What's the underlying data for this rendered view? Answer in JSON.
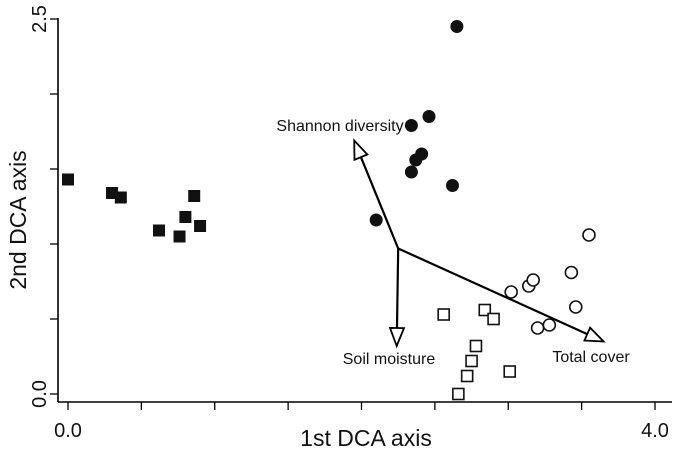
{
  "chart_data": {
    "type": "scatter",
    "title": "",
    "xlabel": "1st DCA axis",
    "ylabel": "2nd DCA axis",
    "xlim": [
      0.0,
      4.0
    ],
    "ylim": [
      0.0,
      2.5
    ],
    "xticks": [
      0.0,
      0.5,
      1.0,
      1.5,
      2.0,
      2.5,
      3.0,
      3.5,
      4.0
    ],
    "yticks": [
      0.0,
      0.5,
      1.0,
      1.5,
      2.0,
      2.5
    ],
    "xtick_labels": [
      {
        "value": 0.0,
        "text": "0.0"
      },
      {
        "value": 4.0,
        "text": "4.0"
      }
    ],
    "ytick_labels": [
      {
        "value": 0.0,
        "text": "0.0"
      },
      {
        "value": 2.5,
        "text": "2.5"
      }
    ],
    "grid": false,
    "series": [
      {
        "marker": "filled-square",
        "color": "#111111",
        "x": [
          0.0,
          0.3,
          0.36,
          0.62,
          0.76,
          0.8,
          0.86,
          0.9
        ],
        "y": [
          1.43,
          1.34,
          1.31,
          1.09,
          1.05,
          1.18,
          1.32,
          1.12
        ]
      },
      {
        "marker": "filled-circle",
        "color": "#111111",
        "x": [
          2.1,
          2.34,
          2.37,
          2.34,
          2.41,
          2.46,
          2.62,
          2.65
        ],
        "y": [
          1.16,
          1.48,
          1.56,
          1.79,
          1.6,
          1.85,
          1.39,
          2.45
        ]
      },
      {
        "marker": "open-circle",
        "color": "#111111",
        "x": [
          3.02,
          3.14,
          3.17,
          3.2,
          3.28,
          3.43,
          3.46,
          3.55
        ],
        "y": [
          0.68,
          0.72,
          0.76,
          0.44,
          0.46,
          0.81,
          0.58,
          1.06
        ]
      },
      {
        "marker": "open-square",
        "color": "#111111",
        "x": [
          2.56,
          2.66,
          2.72,
          2.75,
          2.78,
          2.84,
          2.9,
          3.01
        ],
        "y": [
          0.53,
          0.0,
          0.12,
          0.22,
          0.32,
          0.56,
          0.5,
          0.15
        ]
      }
    ],
    "vectors": [
      {
        "label": "Shannon diversity",
        "x0": 2.25,
        "y0": 0.97,
        "x1": 1.95,
        "y1": 1.69
      },
      {
        "label": "Soil moisture",
        "x0": 2.25,
        "y0": 0.97,
        "x1": 2.24,
        "y1": 0.32
      },
      {
        "label": "Total cover",
        "x0": 2.25,
        "y0": 0.97,
        "x1": 3.65,
        "y1": 0.35
      }
    ]
  }
}
